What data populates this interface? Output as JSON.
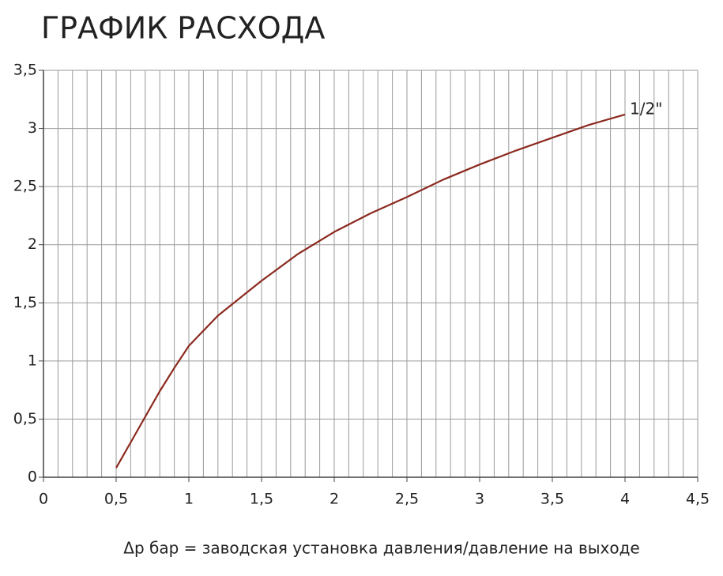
{
  "chart_data": {
    "type": "line",
    "title": "ГРАФИК РАСХОДА",
    "xlabel": "Δp бар = заводская установка давления/давление на выходе",
    "x": [
      0.5,
      0.6,
      0.7,
      0.8,
      0.9,
      1.0,
      1.1,
      1.2,
      1.3,
      1.4,
      1.5,
      1.75,
      2.0,
      2.25,
      2.5,
      2.75,
      3.0,
      3.25,
      3.5,
      3.75,
      4.0
    ],
    "series": [
      {
        "name": "1/2\"",
        "color": "#8b2a1f",
        "values": [
          0.08,
          0.3,
          0.52,
          0.74,
          0.94,
          1.13,
          1.26,
          1.39,
          1.49,
          1.59,
          1.69,
          1.92,
          2.11,
          2.27,
          2.41,
          2.56,
          2.69,
          2.81,
          2.92,
          3.03,
          3.12
        ]
      }
    ],
    "xlim": [
      0,
      4.5
    ],
    "ylim": [
      0,
      3.5
    ],
    "xticks": [
      0,
      {
        "value": 0.5,
        "label": "0,5"
      },
      1,
      {
        "value": 1.5,
        "label": "1,5"
      },
      2,
      {
        "value": 2.5,
        "label": "2,5"
      },
      3,
      {
        "value": 3.5,
        "label": "3,5"
      },
      4,
      {
        "value": 4.5,
        "label": "4,5"
      }
    ],
    "yticks": [
      0,
      {
        "value": 0.5,
        "label": "0,5"
      },
      1,
      {
        "value": 1.5,
        "label": "1,5"
      },
      2,
      {
        "value": 2.5,
        "label": "2,5"
      },
      3,
      {
        "value": 3.5,
        "label": "3,5"
      }
    ],
    "xminorticks": [
      0.1,
      0.2,
      0.3,
      0.4,
      0.6,
      0.7,
      0.8,
      0.9,
      1.1,
      1.2,
      1.3,
      1.4,
      1.6,
      1.7,
      1.8,
      1.9,
      2.1,
      2.2,
      2.3,
      2.4,
      2.6,
      2.7,
      2.8,
      2.9,
      3.1,
      3.2,
      3.3,
      3.4,
      3.6,
      3.7,
      3.8,
      3.9,
      4.1,
      4.2,
      4.3,
      4.4
    ],
    "grid": true
  }
}
